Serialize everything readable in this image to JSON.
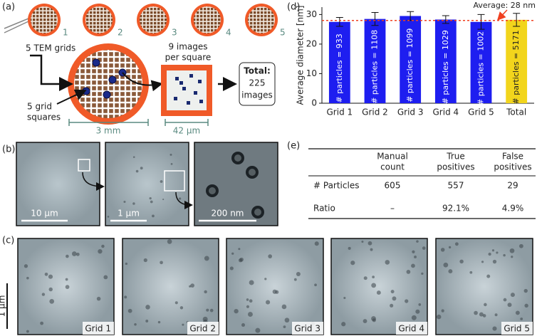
{
  "panel_labels": [
    "(a)",
    "(b)",
    "(c)",
    "(d)",
    "(e)"
  ],
  "diagram": {
    "grid_numbers": [
      "1",
      "2",
      "3",
      "4",
      "5"
    ],
    "tem_grids_label": "5 TEM grids",
    "grid_squares_label": [
      "5 grid",
      "squares"
    ],
    "images_label": [
      "9 images",
      "per square"
    ],
    "total_label": [
      "Total:",
      "225",
      "images"
    ],
    "scale_grid": "3 mm",
    "scale_square": "42 μm"
  },
  "micrographs_b": {
    "scales": [
      "10 μm",
      "1 μm",
      "200 nm"
    ]
  },
  "micrographs_c": {
    "labels": [
      "Grid 1",
      "Grid 2",
      "Grid 3",
      "Grid 4",
      "Grid 5"
    ],
    "scale": "1 μm"
  },
  "chart_data": {
    "type": "bar",
    "y_label": "Average diameter [nm]",
    "categories": [
      "Grid 1",
      "Grid 2",
      "Grid 3",
      "Grid 4",
      "Grid 5",
      "Total"
    ],
    "values": [
      27.5,
      28.5,
      29.5,
      28.3,
      27.5,
      28.2
    ],
    "errors": [
      1.5,
      2.2,
      1.5,
      1.3,
      2.5,
      2.2
    ],
    "bar_labels": [
      "# particles = 933",
      "# particles = 1108",
      "# particles = 1099",
      "# particles = 1029",
      "# particles = 1002",
      "# particles = 5171"
    ],
    "colors": [
      "#1e1ef0",
      "#1e1ef0",
      "#1e1ef0",
      "#1e1ef0",
      "#1e1ef0",
      "#f2d51c"
    ],
    "average": 28,
    "average_label": "Average: 28 nm",
    "ylim": [
      0,
      32.5
    ],
    "yticks": [
      0,
      10,
      20,
      30
    ]
  },
  "table": {
    "header": [
      [
        "Manual",
        "count"
      ],
      [
        "True",
        "positives"
      ],
      [
        "False",
        "positives"
      ]
    ],
    "rows": [
      [
        "# Particles",
        "605",
        "557",
        "29"
      ],
      [
        "Ratio",
        "–",
        "92.1%",
        "4.9%"
      ]
    ]
  }
}
